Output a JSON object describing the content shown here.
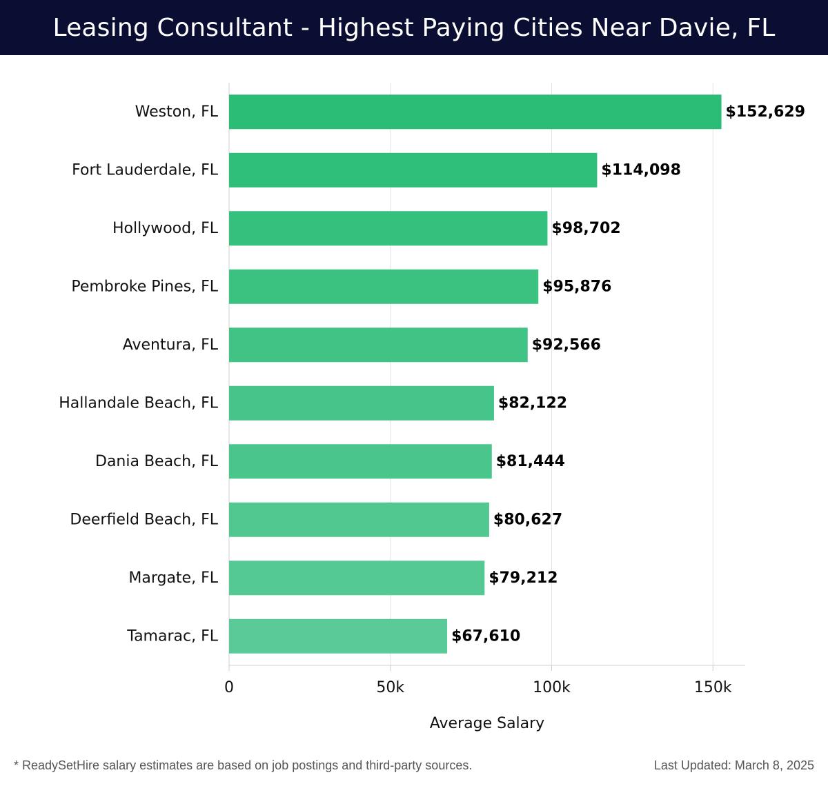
{
  "header": {
    "title": "Leasing Consultant - Highest Paying Cities Near Davie, FL"
  },
  "chart_data": {
    "type": "bar",
    "orientation": "horizontal",
    "categories": [
      "Weston, FL",
      "Fort Lauderdale, FL",
      "Hollywood, FL",
      "Pembroke Pines, FL",
      "Aventura, FL",
      "Hallandale Beach, FL",
      "Dania Beach, FL",
      "Deerfield Beach, FL",
      "Margate, FL",
      "Tamarac, FL"
    ],
    "values": [
      152629,
      114098,
      98702,
      95876,
      92566,
      82122,
      81444,
      80627,
      79212,
      67610
    ],
    "value_labels": [
      "$152,629",
      "$114,098",
      "$98,702",
      "$95,876",
      "$92,566",
      "$82,122",
      "$81,444",
      "$80,627",
      "$79,212",
      "$67,610"
    ],
    "xlabel": "Average Salary",
    "ylabel": "",
    "xlim": [
      0,
      160000
    ],
    "xticks": [
      0,
      50000,
      100000,
      150000
    ],
    "xtick_labels": [
      "0",
      "50k",
      "100k",
      "150k"
    ],
    "grid": true,
    "bar_color_top": "#2bbd76",
    "bar_color_bottom": "#5acb98",
    "label_color": "#000000"
  },
  "footer": {
    "note": "* ReadySetHire salary estimates are based on job postings and third-party sources.",
    "updated": "Last Updated: March 8, 2025"
  }
}
